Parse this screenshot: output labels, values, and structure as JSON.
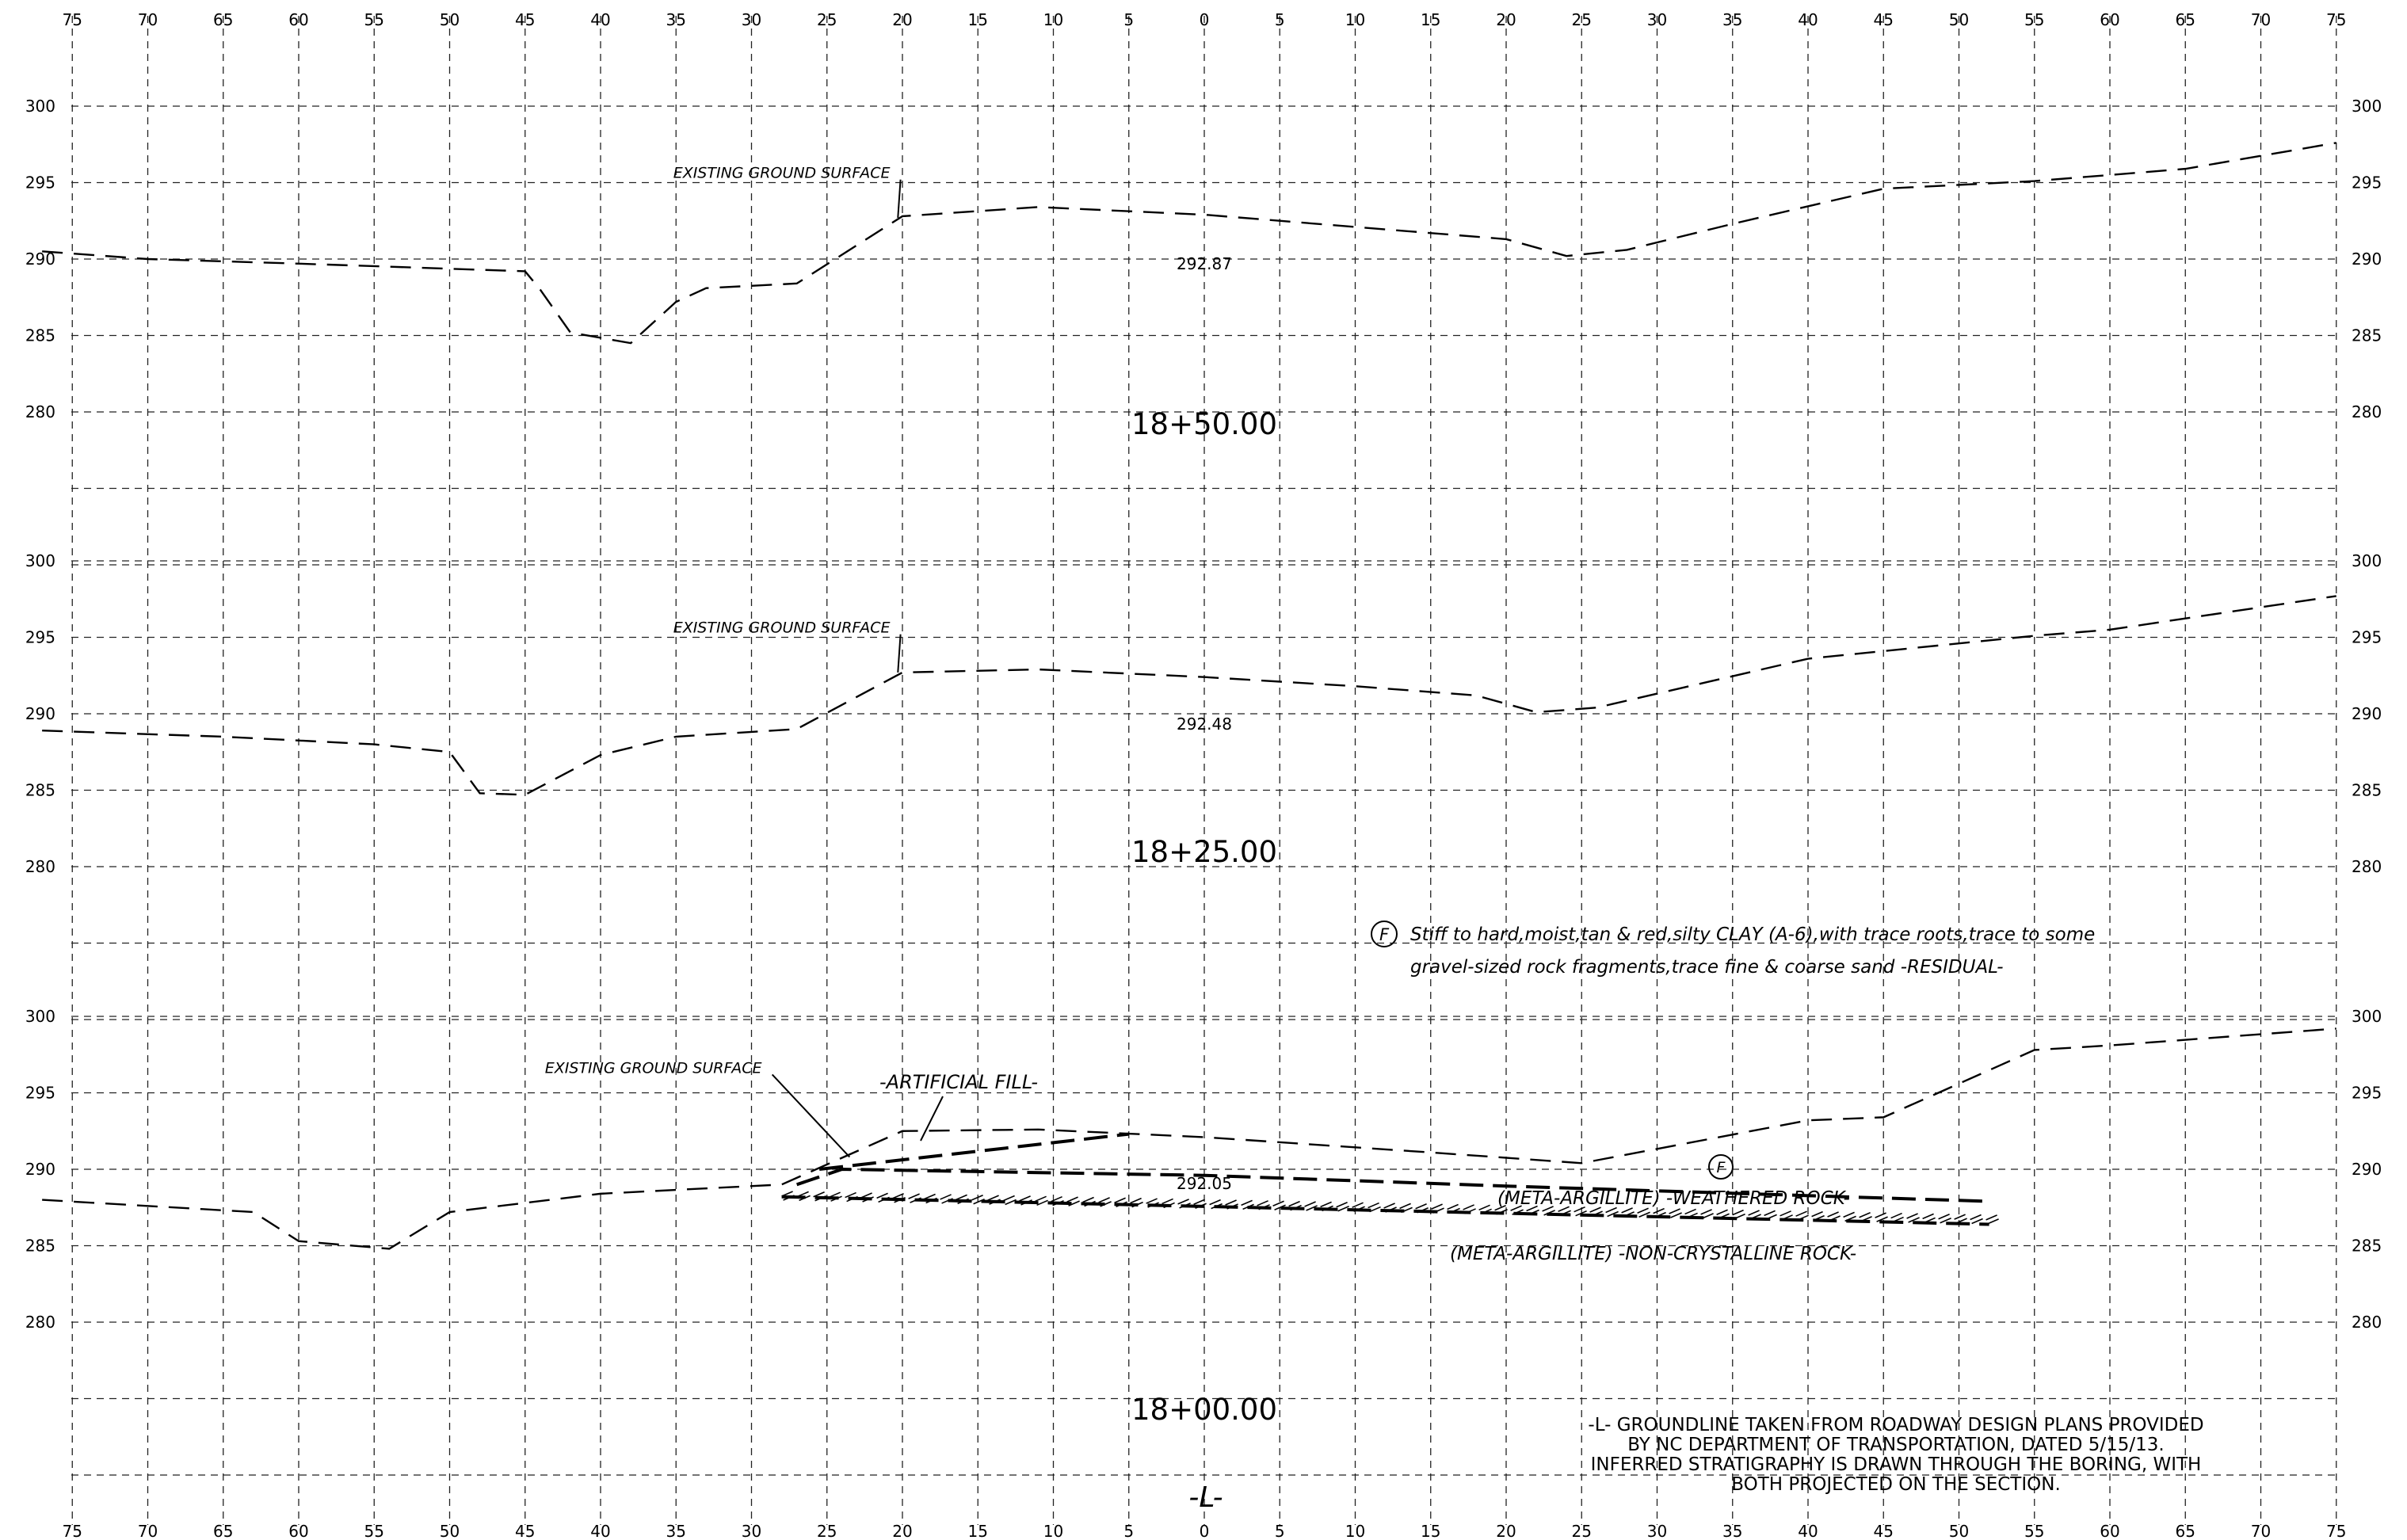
{
  "offsets": [
    "75",
    "70",
    "65",
    "60",
    "55",
    "50",
    "45",
    "40",
    "35",
    "30",
    "25",
    "20",
    "15",
    "10",
    "5",
    "0",
    "5",
    "10",
    "15",
    "20",
    "25",
    "30",
    "35",
    "40",
    "45",
    "50",
    "55",
    "60",
    "65",
    "70",
    "75"
  ],
  "sections": [
    {
      "station": "18+50.00",
      "elev_labels": [
        "300",
        "295",
        "290",
        "285",
        "280"
      ],
      "ground_label": "EXISTING GROUND SURFACE",
      "centerline_elev": "292.87",
      "ground_line": [
        [
          -77,
          290.5
        ],
        [
          -70,
          290
        ],
        [
          -60,
          289.7
        ],
        [
          -45,
          289.2
        ],
        [
          -44,
          288
        ],
        [
          -42,
          285.2
        ],
        [
          -38,
          284.5
        ],
        [
          -35,
          287.2
        ],
        [
          -33,
          288.1
        ],
        [
          -27,
          288.4
        ],
        [
          -20,
          292.8
        ],
        [
          -11,
          293.4
        ],
        [
          0,
          292.9
        ],
        [
          10,
          292.1
        ],
        [
          20,
          291.3
        ],
        [
          24,
          290.2
        ],
        [
          28,
          290.6
        ],
        [
          35,
          292.3
        ],
        [
          45,
          294.6
        ],
        [
          55,
          295.1
        ],
        [
          65,
          295.9
        ],
        [
          75,
          297.6
        ]
      ]
    },
    {
      "station": "18+25.00",
      "elev_labels": [
        "300",
        "295",
        "290",
        "285",
        "280"
      ],
      "ground_label": "EXISTING GROUND SURFACE",
      "centerline_elev": "292.48",
      "ground_line": [
        [
          -77,
          288.9
        ],
        [
          -65,
          288.5
        ],
        [
          -55,
          288
        ],
        [
          -50,
          287.5
        ],
        [
          -48,
          284.8
        ],
        [
          -45,
          284.7
        ],
        [
          -40,
          287.3
        ],
        [
          -35,
          288.5
        ],
        [
          -27,
          289
        ],
        [
          -20,
          292.7
        ],
        [
          -11,
          292.9
        ],
        [
          0,
          292.4
        ],
        [
          10,
          291.8
        ],
        [
          18,
          291.2
        ],
        [
          22,
          290.1
        ],
        [
          26,
          290.4
        ],
        [
          40,
          293.6
        ],
        [
          55,
          295.1
        ],
        [
          60,
          295.5
        ],
        [
          75,
          297.7
        ]
      ]
    },
    {
      "station": "18+00.00",
      "elev_labels": [
        "300",
        "295",
        "290",
        "285",
        "280"
      ],
      "ground_label": "EXISTING GROUND SURFACE",
      "centerline_elev": "292.05",
      "ground_line": [
        [
          -77,
          288
        ],
        [
          -63,
          287.2
        ],
        [
          -60,
          285.3
        ],
        [
          -54,
          284.8
        ],
        [
          -50,
          287.2
        ],
        [
          -40,
          288.4
        ],
        [
          -28,
          289
        ],
        [
          -20,
          292.5
        ],
        [
          -11,
          292.6
        ],
        [
          0,
          292.1
        ],
        [
          15,
          291.1
        ],
        [
          25,
          290.4
        ],
        [
          40,
          293.2
        ],
        [
          45,
          293.4
        ],
        [
          55,
          297.8
        ],
        [
          60,
          298.1
        ],
        [
          75,
          299.2
        ]
      ],
      "fill_line": [
        [
          -25.5,
          290
        ],
        [
          -5,
          292.3
        ]
      ],
      "weathered_rock_line": [
        [
          -27,
          289
        ],
        [
          -24,
          290
        ],
        [
          0,
          289.6
        ],
        [
          20,
          288.9
        ],
        [
          52,
          287.9
        ]
      ],
      "noncrystalline_line": [
        [
          -28,
          288.2
        ],
        [
          52,
          286.4
        ]
      ]
    }
  ],
  "labels": {
    "artificial_fill": "-ARTIFICIAL FILL-",
    "weathered_rock": "(META-ARGILLITE)  -WEATHERED ROCK-",
    "noncrystalline": "(META-ARGILLITE)  -NON-CRYSTALLINE ROCK-",
    "stratum_symbol": "F",
    "residual_line1": "Stiff to hard,moist,tan & red,silty CLAY (A-6),with trace roots,trace to some",
    "residual_line2": "gravel-sized rock fragments,trace fine & coarse sand  -RESIDUAL-"
  },
  "notes": [
    "-L- GROUNDLINE TAKEN FROM ROADWAY DESIGN PLANS PROVIDED",
    "BY NC DEPARTMENT OF TRANSPORTATION, DATED 5/15/13.",
    "INFERRED STRATIGRAPHY IS DRAWN THROUGH THE BORING, WITH",
    "BOTH PROJECTED ON THE SECTION."
  ],
  "alignment_label": "-L-"
}
